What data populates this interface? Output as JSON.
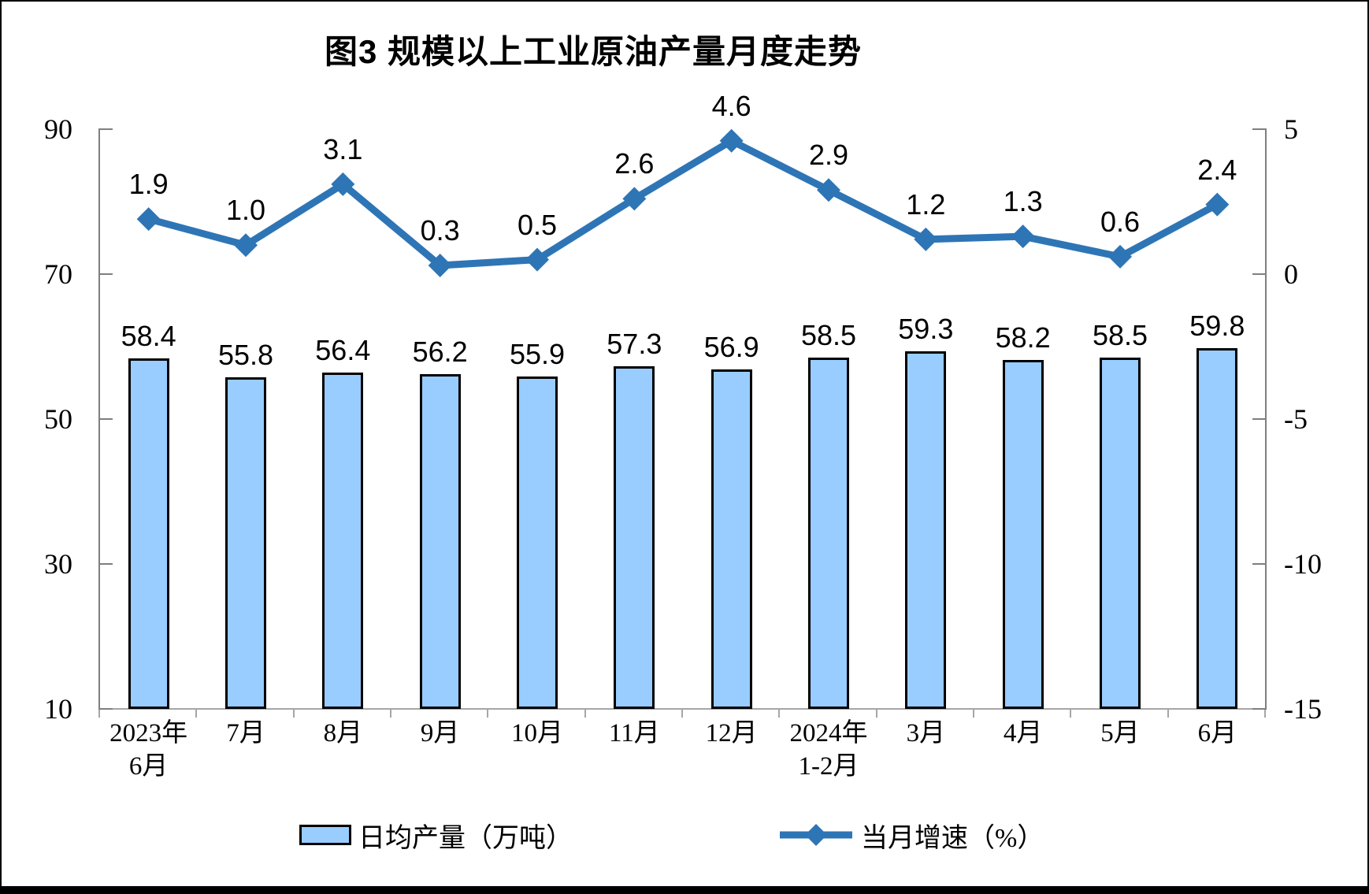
{
  "title": "图3 规模以上工业原油产量月度走势",
  "chart_data": {
    "type": "bar+line combo",
    "title": "图3 规模以上工业原油产量月度走势",
    "categories": [
      {
        "lines": [
          "2023年",
          "6月"
        ]
      },
      {
        "lines": [
          "7月"
        ]
      },
      {
        "lines": [
          "8月"
        ]
      },
      {
        "lines": [
          "9月"
        ]
      },
      {
        "lines": [
          "10月"
        ]
      },
      {
        "lines": [
          "11月"
        ]
      },
      {
        "lines": [
          "12月"
        ]
      },
      {
        "lines": [
          "2024年",
          "1-2月"
        ]
      },
      {
        "lines": [
          "3月"
        ]
      },
      {
        "lines": [
          "4月"
        ]
      },
      {
        "lines": [
          "5月"
        ]
      },
      {
        "lines": [
          "6月"
        ]
      }
    ],
    "series": [
      {
        "name": "日均产量（万吨）",
        "type": "bar",
        "axis": "left",
        "color": "#99CCFF",
        "border_color": "#000000",
        "values": [
          58.4,
          55.8,
          56.4,
          56.2,
          55.9,
          57.3,
          56.9,
          58.5,
          59.3,
          58.2,
          58.5,
          59.8
        ],
        "labels": [
          "58.4",
          "55.8",
          "56.4",
          "56.2",
          "55.9",
          "57.3",
          "56.9",
          "58.5",
          "59.3",
          "58.2",
          "58.5",
          "59.8"
        ]
      },
      {
        "name": "当月增速（%）",
        "type": "line",
        "axis": "right",
        "color": "#2E75B6",
        "marker": "diamond",
        "values": [
          1.9,
          1.0,
          3.1,
          0.3,
          0.5,
          2.6,
          4.6,
          2.9,
          1.2,
          1.3,
          0.6,
          2.4
        ],
        "labels": [
          "1.9",
          "1.0",
          "3.1",
          "0.3",
          "0.5",
          "2.6",
          "4.6",
          "2.9",
          "1.2",
          "1.3",
          "0.6",
          "2.4"
        ]
      }
    ],
    "left_axis": {
      "min": 10,
      "max": 90,
      "ticks": [
        90,
        70,
        50,
        30,
        10
      ],
      "tick_labels": [
        "90",
        "70",
        "50",
        "30",
        "10"
      ]
    },
    "right_axis": {
      "min": -15,
      "max": 5,
      "ticks": [
        5,
        0,
        -5,
        -10,
        -15
      ],
      "tick_labels": [
        "5",
        "0",
        "-5",
        "-10",
        "-15"
      ]
    },
    "legend": [
      "日均产量（万吨）",
      "当月增速（%）"
    ],
    "legend_position": "bottom",
    "grid": "off"
  }
}
